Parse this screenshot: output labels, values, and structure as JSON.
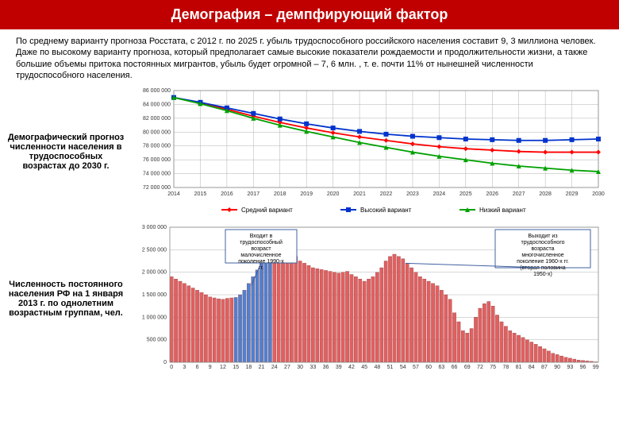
{
  "header": {
    "title": "Демография – демпфирующий фактор"
  },
  "intro": {
    "text": "По среднему варианту прогноза Росстата, с 2012 г. по 2025 г. убыль трудоспособного российского населения составит 9, 3 миллиона человек. Даже по высокому варианту прогноза, который предполагает самые высокие показатели рождаемости и продолжительности жизни, а также большие объемы притока постоянных мигрантов, убыль будет огромной – 7, 6 млн. , т. е. почти 11% от нынешней численности трудоспособного населения."
  },
  "chart1": {
    "side_label": "Демографический прогноз численности населения в трудоспособных возрастах до 2030 г.",
    "type": "line",
    "x_labels": [
      "2014",
      "2015",
      "2016",
      "2017",
      "2018",
      "2019",
      "2020",
      "2021",
      "2022",
      "2023",
      "2024",
      "2025",
      "2026",
      "2027",
      "2028",
      "2029",
      "2030"
    ],
    "y_ticks": [
      72000000,
      74000000,
      76000000,
      78000000,
      80000000,
      82000000,
      84000000,
      86000000
    ],
    "y_tick_labels": [
      "72 000 000",
      "74 000 000",
      "76 000 000",
      "78 000 000",
      "80 000 000",
      "82 000 000",
      "84 000 000",
      "86 000 000"
    ],
    "ylim": [
      72000000,
      86000000
    ],
    "series": [
      {
        "name": "Средний вариант",
        "color": "#ff0000",
        "marker": "diamond",
        "values": [
          85000000,
          84200000,
          83300000,
          82300000,
          81400000,
          80600000,
          79900000,
          79300000,
          78800000,
          78300000,
          77900000,
          77600000,
          77400000,
          77200000,
          77100000,
          77100000,
          77100000
        ]
      },
      {
        "name": "Высокий вариант",
        "color": "#0033cc",
        "marker": "square",
        "values": [
          85000000,
          84300000,
          83500000,
          82700000,
          81900000,
          81200000,
          80600000,
          80100000,
          79700000,
          79400000,
          79200000,
          79000000,
          78900000,
          78800000,
          78800000,
          78900000,
          79000000
        ]
      },
      {
        "name": "Низкий вариант",
        "color": "#00a000",
        "marker": "triangle",
        "values": [
          85000000,
          84100000,
          83100000,
          82000000,
          81000000,
          80100000,
          79300000,
          78500000,
          77800000,
          77100000,
          76500000,
          76000000,
          75500000,
          75100000,
          74800000,
          74500000,
          74300000
        ]
      }
    ],
    "grid_color": "#b0b0b0",
    "background": "#ffffff"
  },
  "chart2": {
    "side_label": "Численность постоянного населения РФ на 1 января 2013 г. по однолетним возрастным группам, чел.",
    "type": "bar",
    "y_ticks": [
      0,
      500000,
      1000000,
      1500000,
      2000000,
      2500000,
      3000000
    ],
    "y_tick_labels": [
      "0",
      "500 000",
      "1 000 000",
      "1 500 000",
      "2 000 000",
      "2 500 000",
      "3 000 000"
    ],
    "ylim": [
      0,
      3000000
    ],
    "colors": {
      "red": "#e06060",
      "blue": "#5080d0"
    },
    "x_step": 3,
    "callout1": "Входит в трудоспособный возраст малочисленное поколение 1990-х гг.",
    "callout2": "Выходит из трудоспособного возраста многочисленное поколение 1960-х гг. (вторая половина 1950-х)",
    "bars": [
      {
        "v": 1900000,
        "c": "red"
      },
      {
        "v": 1850000,
        "c": "red"
      },
      {
        "v": 1800000,
        "c": "red"
      },
      {
        "v": 1750000,
        "c": "red"
      },
      {
        "v": 1700000,
        "c": "red"
      },
      {
        "v": 1650000,
        "c": "red"
      },
      {
        "v": 1600000,
        "c": "red"
      },
      {
        "v": 1550000,
        "c": "red"
      },
      {
        "v": 1500000,
        "c": "red"
      },
      {
        "v": 1450000,
        "c": "red"
      },
      {
        "v": 1430000,
        "c": "red"
      },
      {
        "v": 1410000,
        "c": "red"
      },
      {
        "v": 1400000,
        "c": "red"
      },
      {
        "v": 1420000,
        "c": "red"
      },
      {
        "v": 1430000,
        "c": "red"
      },
      {
        "v": 1440000,
        "c": "blue"
      },
      {
        "v": 1500000,
        "c": "blue"
      },
      {
        "v": 1600000,
        "c": "blue"
      },
      {
        "v": 1750000,
        "c": "blue"
      },
      {
        "v": 1900000,
        "c": "blue"
      },
      {
        "v": 2050000,
        "c": "blue"
      },
      {
        "v": 2200000,
        "c": "blue"
      },
      {
        "v": 2300000,
        "c": "blue"
      },
      {
        "v": 2350000,
        "c": "blue"
      },
      {
        "v": 2450000,
        "c": "red"
      },
      {
        "v": 2600000,
        "c": "red"
      },
      {
        "v": 2450000,
        "c": "red"
      },
      {
        "v": 2550000,
        "c": "red"
      },
      {
        "v": 2400000,
        "c": "red"
      },
      {
        "v": 2350000,
        "c": "red"
      },
      {
        "v": 2250000,
        "c": "red"
      },
      {
        "v": 2200000,
        "c": "red"
      },
      {
        "v": 2150000,
        "c": "red"
      },
      {
        "v": 2100000,
        "c": "red"
      },
      {
        "v": 2080000,
        "c": "red"
      },
      {
        "v": 2060000,
        "c": "red"
      },
      {
        "v": 2040000,
        "c": "red"
      },
      {
        "v": 2020000,
        "c": "red"
      },
      {
        "v": 2000000,
        "c": "red"
      },
      {
        "v": 1980000,
        "c": "red"
      },
      {
        "v": 2000000,
        "c": "red"
      },
      {
        "v": 2020000,
        "c": "red"
      },
      {
        "v": 1950000,
        "c": "red"
      },
      {
        "v": 1900000,
        "c": "red"
      },
      {
        "v": 1850000,
        "c": "red"
      },
      {
        "v": 1800000,
        "c": "red"
      },
      {
        "v": 1850000,
        "c": "red"
      },
      {
        "v": 1900000,
        "c": "red"
      },
      {
        "v": 2000000,
        "c": "red"
      },
      {
        "v": 2100000,
        "c": "red"
      },
      {
        "v": 2250000,
        "c": "red"
      },
      {
        "v": 2350000,
        "c": "red"
      },
      {
        "v": 2400000,
        "c": "red"
      },
      {
        "v": 2350000,
        "c": "red"
      },
      {
        "v": 2300000,
        "c": "red"
      },
      {
        "v": 2200000,
        "c": "red"
      },
      {
        "v": 2100000,
        "c": "red"
      },
      {
        "v": 2000000,
        "c": "red"
      },
      {
        "v": 1900000,
        "c": "red"
      },
      {
        "v": 1850000,
        "c": "red"
      },
      {
        "v": 1800000,
        "c": "red"
      },
      {
        "v": 1750000,
        "c": "red"
      },
      {
        "v": 1700000,
        "c": "red"
      },
      {
        "v": 1600000,
        "c": "red"
      },
      {
        "v": 1500000,
        "c": "red"
      },
      {
        "v": 1400000,
        "c": "red"
      },
      {
        "v": 1100000,
        "c": "red"
      },
      {
        "v": 900000,
        "c": "red"
      },
      {
        "v": 700000,
        "c": "red"
      },
      {
        "v": 650000,
        "c": "red"
      },
      {
        "v": 750000,
        "c": "red"
      },
      {
        "v": 1000000,
        "c": "red"
      },
      {
        "v": 1200000,
        "c": "red"
      },
      {
        "v": 1300000,
        "c": "red"
      },
      {
        "v": 1350000,
        "c": "red"
      },
      {
        "v": 1250000,
        "c": "red"
      },
      {
        "v": 1050000,
        "c": "red"
      },
      {
        "v": 900000,
        "c": "red"
      },
      {
        "v": 800000,
        "c": "red"
      },
      {
        "v": 700000,
        "c": "red"
      },
      {
        "v": 650000,
        "c": "red"
      },
      {
        "v": 600000,
        "c": "red"
      },
      {
        "v": 550000,
        "c": "red"
      },
      {
        "v": 500000,
        "c": "red"
      },
      {
        "v": 450000,
        "c": "red"
      },
      {
        "v": 400000,
        "c": "red"
      },
      {
        "v": 350000,
        "c": "red"
      },
      {
        "v": 300000,
        "c": "red"
      },
      {
        "v": 250000,
        "c": "red"
      },
      {
        "v": 200000,
        "c": "red"
      },
      {
        "v": 170000,
        "c": "red"
      },
      {
        "v": 140000,
        "c": "red"
      },
      {
        "v": 110000,
        "c": "red"
      },
      {
        "v": 90000,
        "c": "red"
      },
      {
        "v": 70000,
        "c": "red"
      },
      {
        "v": 50000,
        "c": "red"
      },
      {
        "v": 40000,
        "c": "red"
      },
      {
        "v": 30000,
        "c": "red"
      },
      {
        "v": 20000,
        "c": "red"
      },
      {
        "v": 10000,
        "c": "red"
      }
    ]
  }
}
